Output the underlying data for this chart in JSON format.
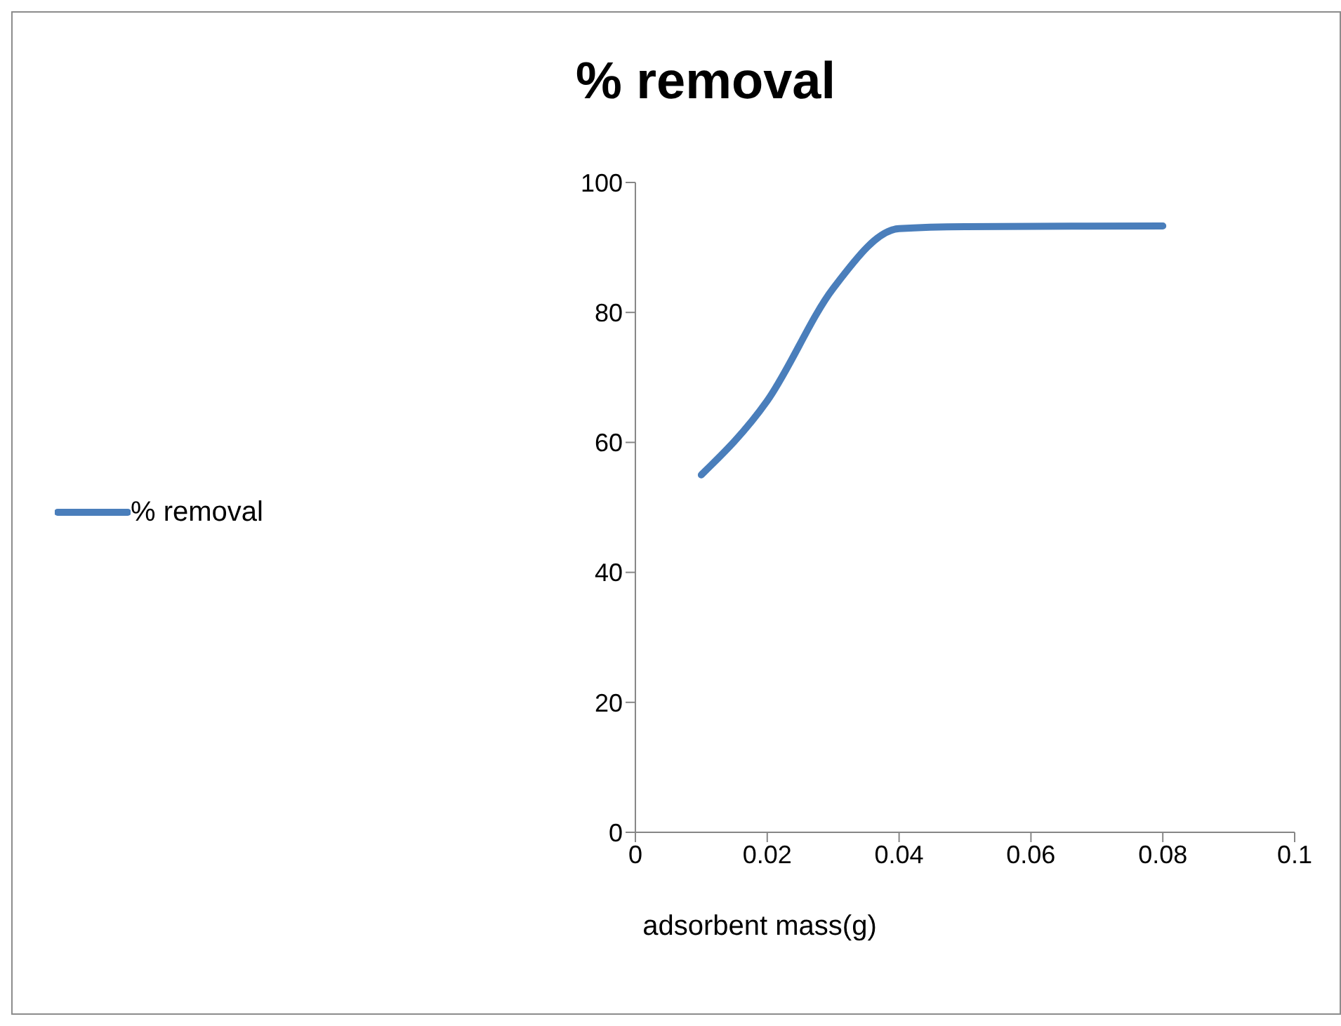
{
  "chart_data": {
    "type": "line",
    "title": "% removal",
    "xlabel": "adsorbent mass(g)",
    "x": [
      0.01,
      0.02,
      0.03,
      0.04,
      0.05,
      0.08
    ],
    "series": [
      {
        "name": "% removal",
        "color": "#4a7ebb",
        "values": [
          55,
          66.4,
          83.7,
          92.9,
          93.2,
          93.3
        ]
      }
    ],
    "xlim": [
      0,
      0.1
    ],
    "xticks": [
      0,
      0.02,
      0.04,
      0.06,
      0.08,
      0.1
    ],
    "ylim": [
      0,
      100
    ],
    "yticks": [
      0,
      20,
      40,
      60,
      80,
      100
    ],
    "grid": false,
    "legend": "left",
    "marker": "none",
    "line_style": "solid"
  }
}
